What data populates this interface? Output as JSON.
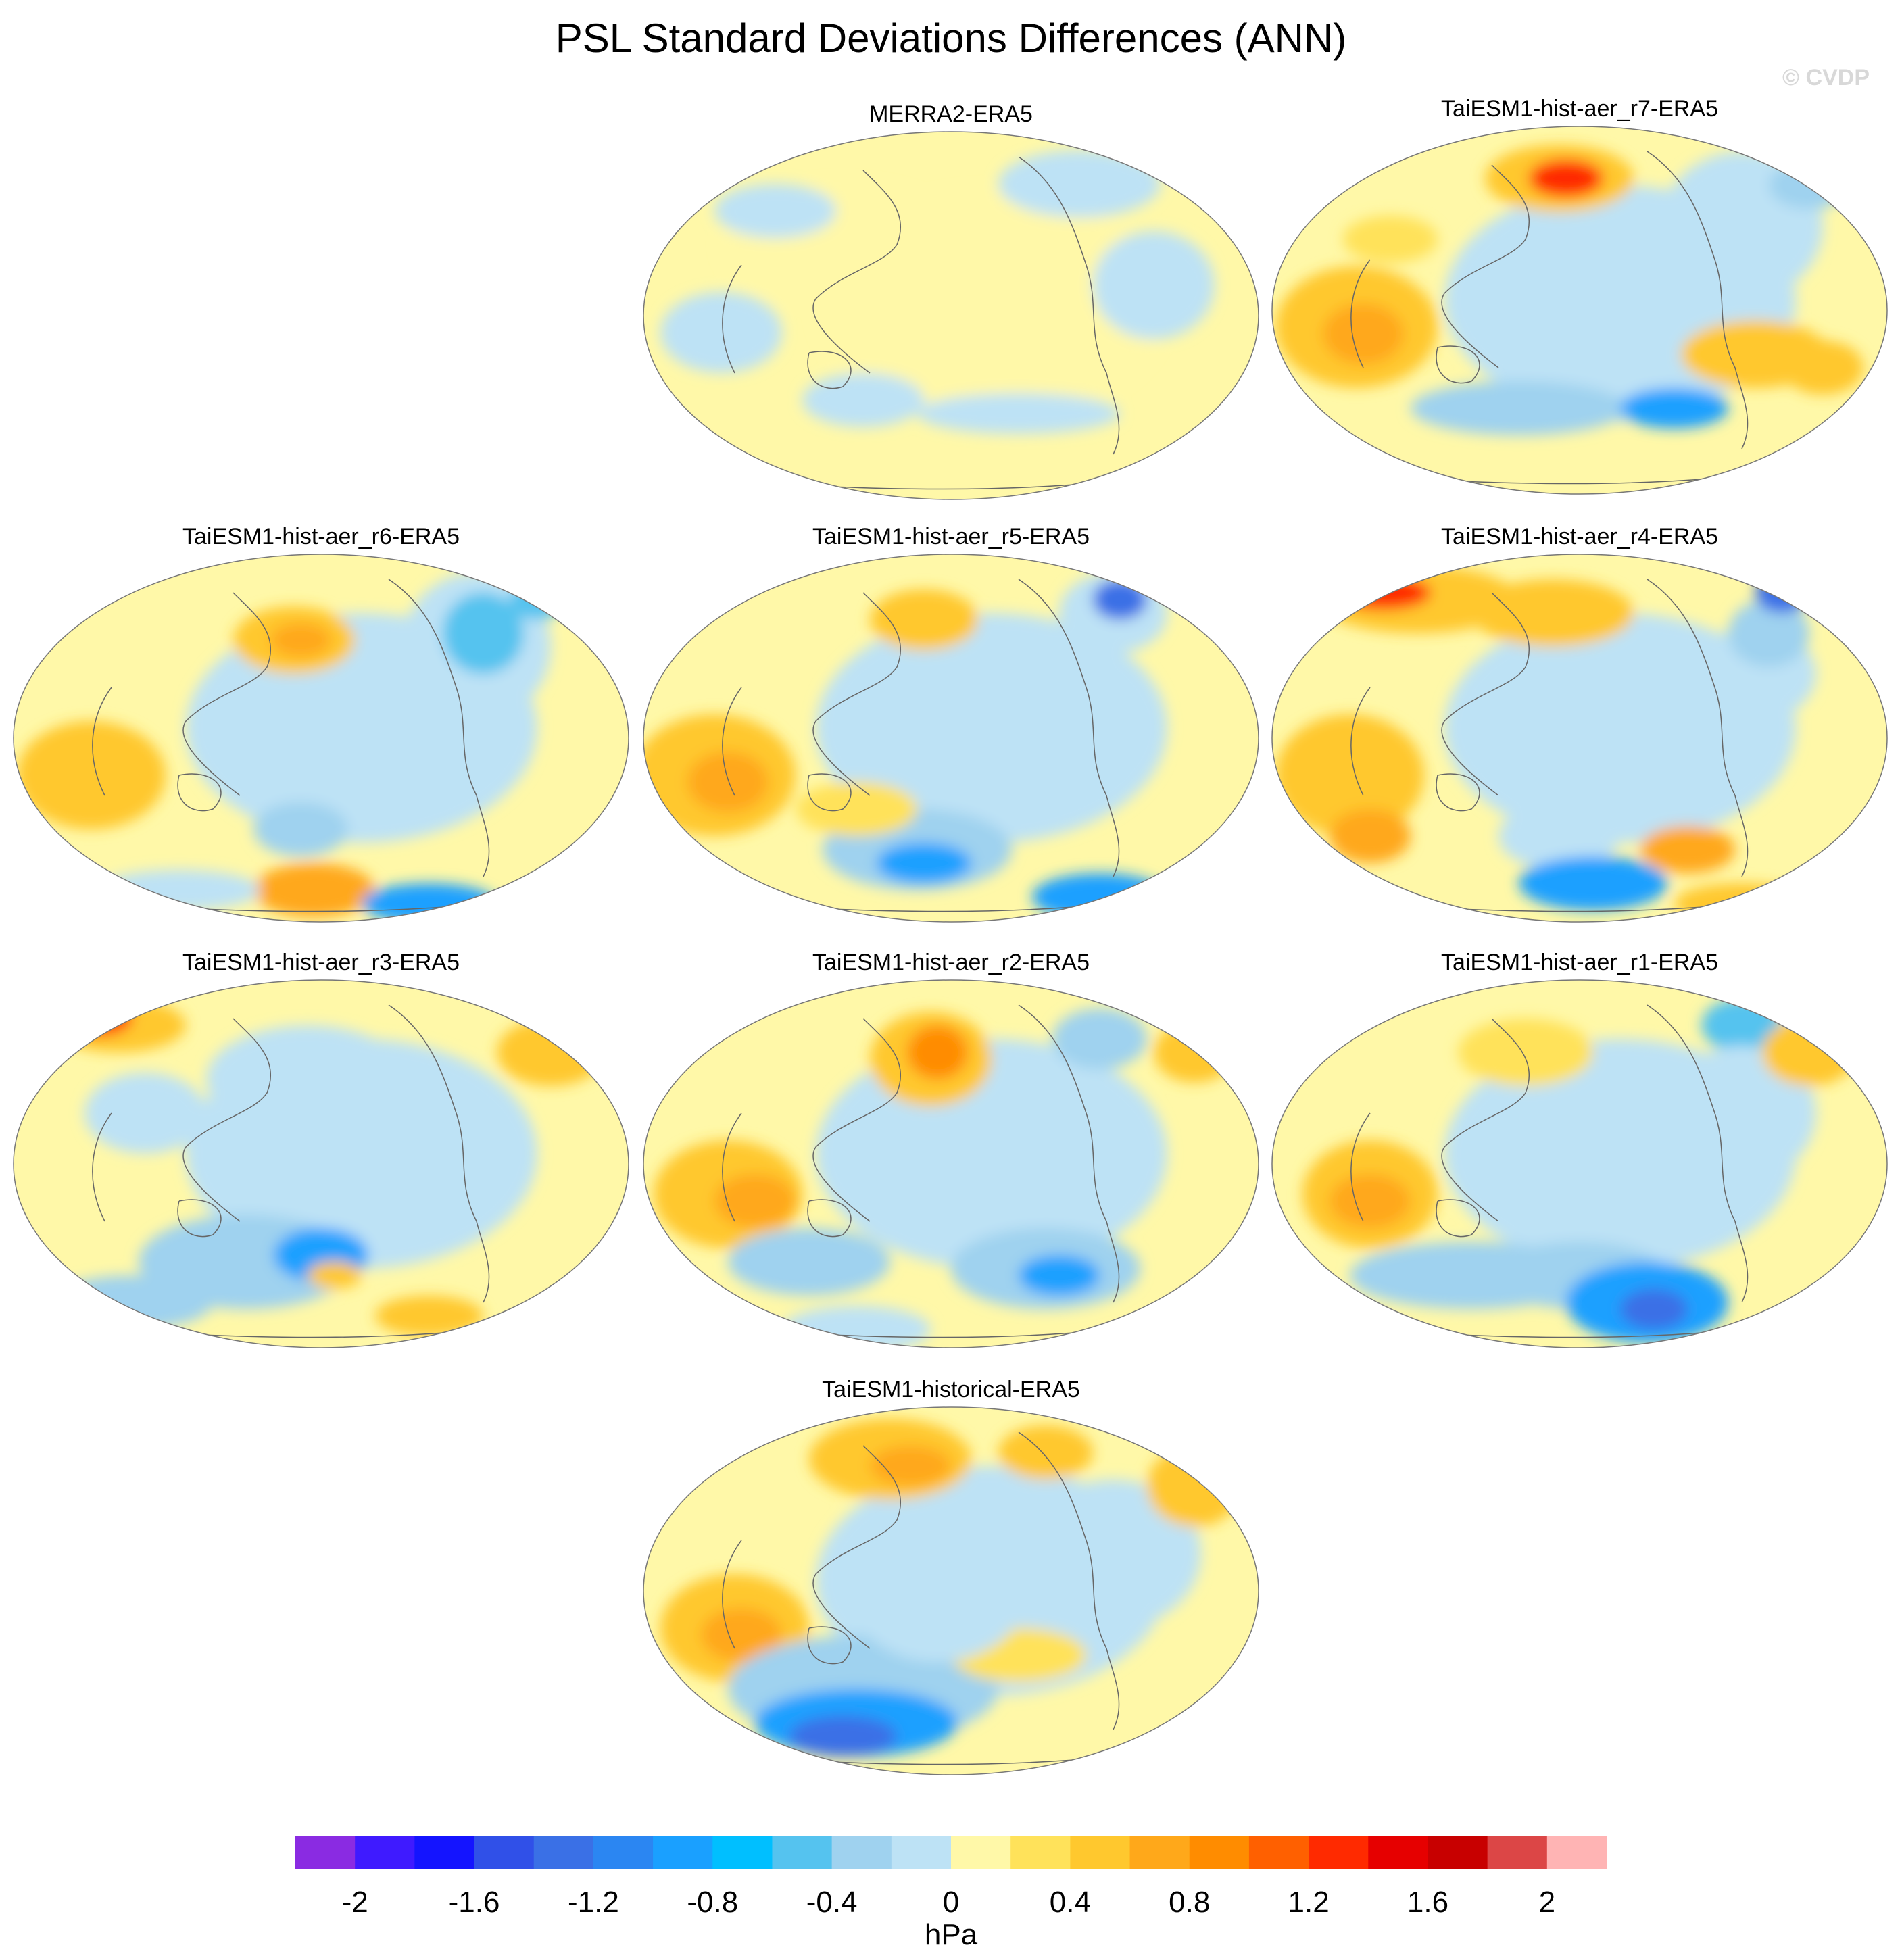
{
  "title": "PSL Standard Deviations Differences (ANN)",
  "watermark": "© CVDP",
  "panels": [
    {
      "label": "MERRA2-ERA5",
      "variant": 0
    },
    {
      "label": "TaiESM1-hist-aer_r7-ERA5",
      "variant": 1
    },
    {
      "label": "TaiESM1-hist-aer_r6-ERA5",
      "variant": 2
    },
    {
      "label": "TaiESM1-hist-aer_r5-ERA5",
      "variant": 3
    },
    {
      "label": "TaiESM1-hist-aer_r4-ERA5",
      "variant": 4
    },
    {
      "label": "TaiESM1-hist-aer_r3-ERA5",
      "variant": 5
    },
    {
      "label": "TaiESM1-hist-aer_r2-ERA5",
      "variant": 6
    },
    {
      "label": "TaiESM1-hist-aer_r1-ERA5",
      "variant": 7
    },
    {
      "label": "TaiESM1-historical-ERA5",
      "variant": 8
    }
  ],
  "colorbar": {
    "colors": [
      "#8a2be2",
      "#3f1aff",
      "#1414ff",
      "#3050e8",
      "#3a70e6",
      "#2b86f2",
      "#1aa0ff",
      "#00bfff",
      "#55c3ef",
      "#9fd2ef",
      "#bde2f5",
      "#fff8a8",
      "#ffe25a",
      "#ffc82e",
      "#ffa81a",
      "#ff8c00",
      "#ff6000",
      "#ff2a00",
      "#e60000",
      "#c80000",
      "#dc4646",
      "#ffb4b4"
    ],
    "ticks": [
      "-2",
      "-1.6",
      "-1.2",
      "-0.8",
      "-0.4",
      "0",
      "0.4",
      "0.8",
      "1.2",
      "1.6",
      "2"
    ],
    "units": "hPa"
  }
}
